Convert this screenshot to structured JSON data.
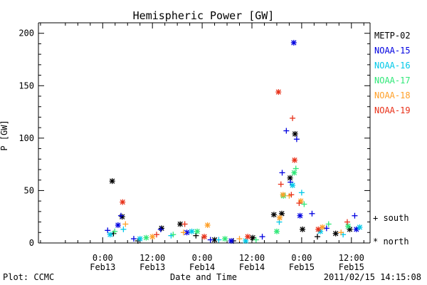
{
  "chart_data": {
    "type": "scatter",
    "title": "Hemispheric Power [GW]",
    "xlabel": "Date and Time",
    "ylabel": "P [GW]",
    "ylim": [
      0,
      210
    ],
    "xlim_hours": [
      -15.5,
      27.5
    ],
    "yticks": [
      0,
      50,
      100,
      150,
      200
    ],
    "xticks": [
      {
        "hour": 0,
        "time": "0:00",
        "date": "Feb13"
      },
      {
        "hour": 12,
        "time": "12:00",
        "date": "Feb13"
      },
      {
        "hour": 24,
        "time": "0:00",
        "date": "Feb14"
      },
      {
        "hour": 36,
        "time": "12:00",
        "date": "Feb14"
      },
      {
        "hour": 48,
        "time": "0:00",
        "date": "Feb15"
      },
      {
        "hour": 60,
        "time": "12:00",
        "date": "Feb15"
      }
    ],
    "x_axis_note": "x values are hours after 2011/02/12 12:00 UT",
    "grid": false,
    "legend_position": "right",
    "marker_legend": [
      {
        "symbol": "+",
        "label": "south"
      },
      {
        "symbol": "*",
        "label": "north"
      }
    ],
    "series": [
      {
        "name": "METP-02",
        "color": "#000000",
        "points": [
          {
            "x": 2.3,
            "y": 59,
            "m": "*"
          },
          {
            "x": 4.7,
            "y": 25,
            "m": "*"
          },
          {
            "x": 2.6,
            "y": 9,
            "m": "+"
          },
          {
            "x": 8.5,
            "y": 2,
            "m": "+"
          },
          {
            "x": 14.2,
            "y": 14,
            "m": "*"
          },
          {
            "x": 18.7,
            "y": 18,
            "m": "*"
          },
          {
            "x": 22.5,
            "y": 7,
            "m": "+"
          },
          {
            "x": 27.0,
            "y": 3,
            "m": "*"
          },
          {
            "x": 31.5,
            "y": 2,
            "m": "+"
          },
          {
            "x": 36.2,
            "y": 5,
            "m": "*"
          },
          {
            "x": 41.3,
            "y": 27,
            "m": "*"
          },
          {
            "x": 43.2,
            "y": 28,
            "m": "*"
          },
          {
            "x": 45.2,
            "y": 62,
            "m": "*"
          },
          {
            "x": 46.4,
            "y": 104,
            "m": "*"
          },
          {
            "x": 48.2,
            "y": 13,
            "m": "*"
          },
          {
            "x": 51.8,
            "y": 6,
            "m": "+"
          },
          {
            "x": 56.2,
            "y": 9,
            "m": "*"
          },
          {
            "x": 59.6,
            "y": 13,
            "m": "*"
          }
        ]
      },
      {
        "name": "NOAA-15",
        "color": "#0000e0",
        "points": [
          {
            "x": 1.2,
            "y": 12,
            "m": "+"
          },
          {
            "x": 3.7,
            "y": 17,
            "m": "*"
          },
          {
            "x": 4.4,
            "y": 26,
            "m": "+"
          },
          {
            "x": 7.5,
            "y": 4,
            "m": "+"
          },
          {
            "x": 14.0,
            "y": 13,
            "m": "+"
          },
          {
            "x": 20.3,
            "y": 10,
            "m": "*"
          },
          {
            "x": 26.0,
            "y": 3,
            "m": "+"
          },
          {
            "x": 31.0,
            "y": 2,
            "m": "*"
          },
          {
            "x": 38.5,
            "y": 6,
            "m": "+"
          },
          {
            "x": 43.3,
            "y": 67,
            "m": "+"
          },
          {
            "x": 44.3,
            "y": 107,
            "m": "+"
          },
          {
            "x": 45.3,
            "y": 58,
            "m": "+"
          },
          {
            "x": 46.1,
            "y": 191,
            "m": "*"
          },
          {
            "x": 46.8,
            "y": 99,
            "m": "+"
          },
          {
            "x": 47.6,
            "y": 26,
            "m": "*"
          },
          {
            "x": 50.5,
            "y": 28,
            "m": "+"
          },
          {
            "x": 54.0,
            "y": 14,
            "m": "+"
          },
          {
            "x": 60.8,
            "y": 26,
            "m": "+"
          },
          {
            "x": 61.2,
            "y": 13,
            "m": "*"
          }
        ]
      },
      {
        "name": "NOAA-16",
        "color": "#00c8e8",
        "points": [
          {
            "x": 1.8,
            "y": 8,
            "m": "*"
          },
          {
            "x": 5.0,
            "y": 13,
            "m": "+"
          },
          {
            "x": 9.0,
            "y": 4,
            "m": "*"
          },
          {
            "x": 16.5,
            "y": 7,
            "m": "+"
          },
          {
            "x": 21.5,
            "y": 11,
            "m": "*"
          },
          {
            "x": 28.0,
            "y": 3,
            "m": "+"
          },
          {
            "x": 34.5,
            "y": 2,
            "m": "*"
          },
          {
            "x": 42.6,
            "y": 20,
            "m": "+"
          },
          {
            "x": 45.8,
            "y": 55,
            "m": "*"
          },
          {
            "x": 48.0,
            "y": 48,
            "m": "+"
          },
          {
            "x": 52.5,
            "y": 11,
            "m": "*"
          },
          {
            "x": 58.0,
            "y": 8,
            "m": "+"
          },
          {
            "x": 62.0,
            "y": 15,
            "m": "*"
          }
        ]
      },
      {
        "name": "NOAA-17",
        "color": "#30e878",
        "points": [
          {
            "x": 2.9,
            "y": 11,
            "m": "+"
          },
          {
            "x": 10.5,
            "y": 5,
            "m": "*"
          },
          {
            "x": 17.0,
            "y": 8,
            "m": "+"
          },
          {
            "x": 22.8,
            "y": 11,
            "m": "*"
          },
          {
            "x": 29.5,
            "y": 4,
            "m": "*"
          },
          {
            "x": 37.0,
            "y": 3,
            "m": "+"
          },
          {
            "x": 42.0,
            "y": 11,
            "m": "*"
          },
          {
            "x": 43.6,
            "y": 45,
            "m": "*"
          },
          {
            "x": 46.6,
            "y": 71,
            "m": "+"
          },
          {
            "x": 46.2,
            "y": 67,
            "m": "*"
          },
          {
            "x": 48.6,
            "y": 37,
            "m": "+"
          },
          {
            "x": 54.5,
            "y": 18,
            "m": "+"
          },
          {
            "x": 59.2,
            "y": 16,
            "m": "*"
          }
        ]
      },
      {
        "name": "NOAA-18",
        "color": "#ffa028",
        "points": [
          {
            "x": 5.5,
            "y": 18,
            "m": "+"
          },
          {
            "x": 12.0,
            "y": 6,
            "m": "*"
          },
          {
            "x": 19.5,
            "y": 10,
            "m": "+"
          },
          {
            "x": 25.3,
            "y": 17,
            "m": "*"
          },
          {
            "x": 33.0,
            "y": 4,
            "m": "+"
          },
          {
            "x": 42.7,
            "y": 24,
            "m": "*"
          },
          {
            "x": 43.5,
            "y": 46,
            "m": "*"
          },
          {
            "x": 45.0,
            "y": 45,
            "m": "+"
          },
          {
            "x": 47.8,
            "y": 40,
            "m": "*"
          },
          {
            "x": 53.0,
            "y": 15,
            "m": "*"
          },
          {
            "x": 57.5,
            "y": 10,
            "m": "+"
          }
        ]
      },
      {
        "name": "NOAA-19",
        "color": "#e83018",
        "points": [
          {
            "x": 4.8,
            "y": 39,
            "m": "*"
          },
          {
            "x": 13.0,
            "y": 8,
            "m": "+"
          },
          {
            "x": 19.8,
            "y": 18,
            "m": "+"
          },
          {
            "x": 24.5,
            "y": 6,
            "m": "*"
          },
          {
            "x": 35.0,
            "y": 6,
            "m": "*"
          },
          {
            "x": 42.4,
            "y": 144,
            "m": "*"
          },
          {
            "x": 43.0,
            "y": 56,
            "m": "+"
          },
          {
            "x": 45.5,
            "y": 46,
            "m": "+"
          },
          {
            "x": 45.8,
            "y": 119,
            "m": "+"
          },
          {
            "x": 46.3,
            "y": 79,
            "m": "*"
          },
          {
            "x": 47.4,
            "y": 38,
            "m": "+"
          },
          {
            "x": 52.0,
            "y": 13,
            "m": "*"
          },
          {
            "x": 59.0,
            "y": 20,
            "m": "+"
          }
        ]
      }
    ]
  },
  "footer": {
    "plot_credit": "Plot: CCMC",
    "timestamp": "2011/02/15 14:15:08"
  }
}
